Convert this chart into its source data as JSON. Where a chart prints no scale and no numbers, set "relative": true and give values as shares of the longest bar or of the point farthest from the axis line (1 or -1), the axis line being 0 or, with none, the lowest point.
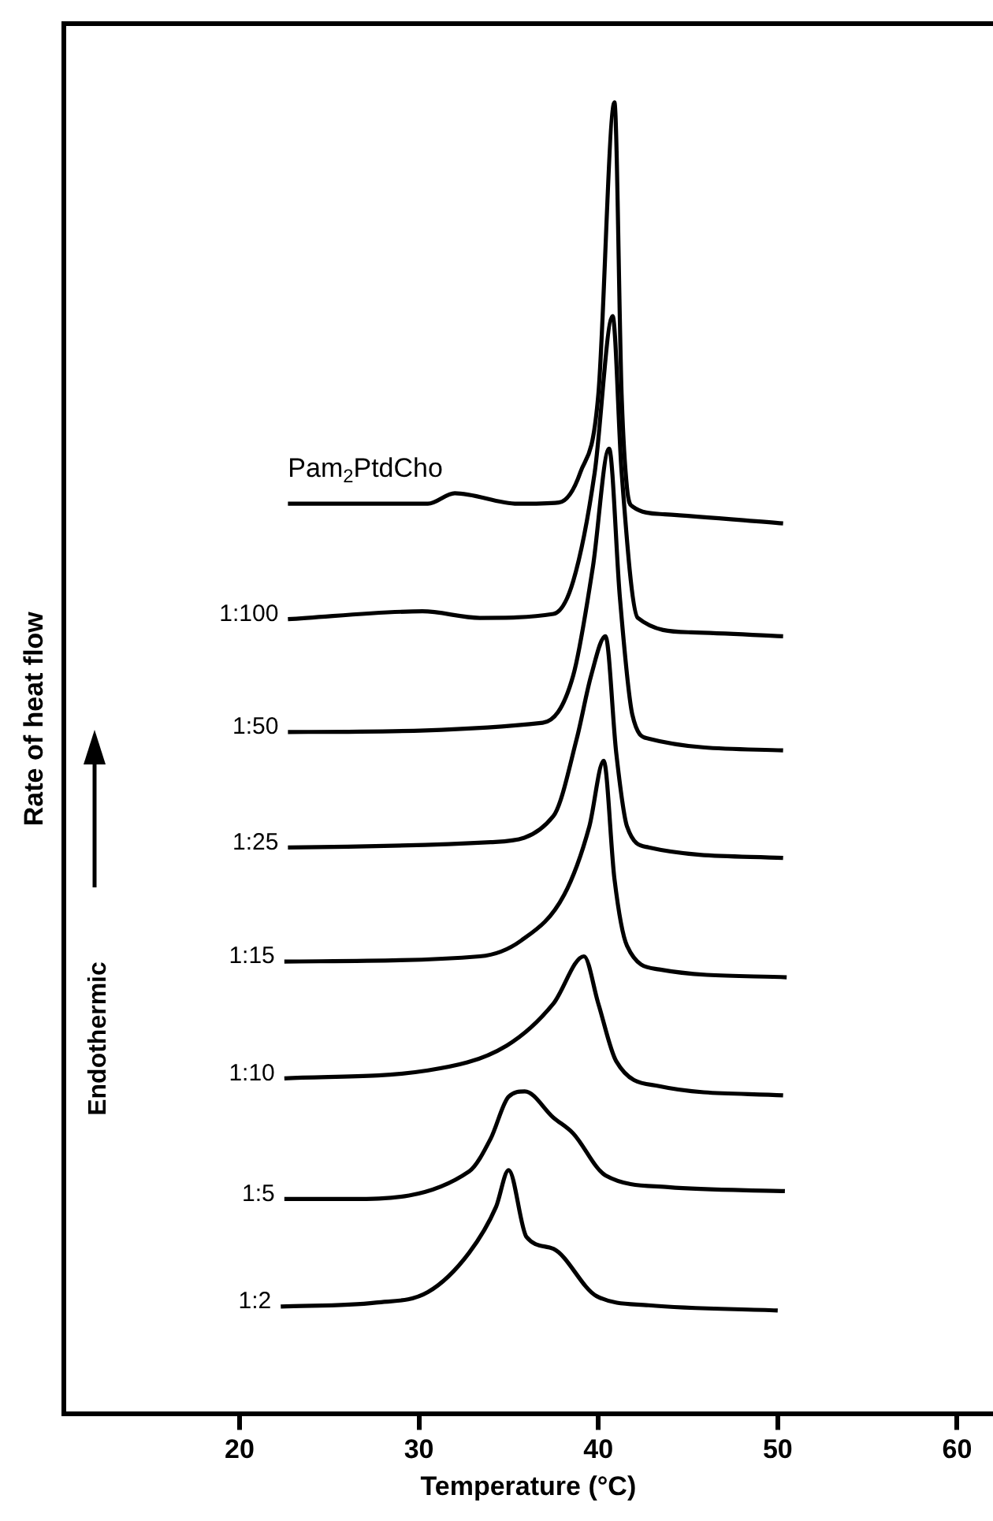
{
  "chart_data": {
    "type": "line",
    "relative": true,
    "xlabel": "Temperature (°C)",
    "ylabel": "Rate of heat flow",
    "annotations": [
      "Endothermic"
    ],
    "xlim": [
      10.2,
      62
    ],
    "xticks": [
      20,
      30,
      40,
      50,
      60
    ],
    "grid": false,
    "legend": false,
    "tick_labels": "x",
    "marker": "none",
    "line_style": "solid",
    "series": [
      {
        "name": "Pam$_{2}$PtdCho",
        "color": "#000000",
        "x": [
          22.7,
          30.5,
          32.0,
          35.5,
          37.8,
          39.0,
          40.0,
          40.9,
          41.3,
          41.6,
          41.9,
          43.7,
          50.3
        ],
        "values": [
          0.694,
          0.694,
          0.702,
          0.694,
          0.695,
          0.718,
          0.777,
          1.0,
          0.777,
          0.706,
          0.692,
          0.686,
          0.679
        ]
      },
      {
        "name": "1:100",
        "color": "#000000",
        "x": [
          22.7,
          30.2,
          33.4,
          37.5,
          38.6,
          39.8,
          40.8,
          41.3,
          42.2,
          45.2,
          50.3
        ],
        "values": [
          0.606,
          0.612,
          0.607,
          0.61,
          0.635,
          0.718,
          0.837,
          0.718,
          0.607,
          0.596,
          0.593
        ]
      },
      {
        "name": "1:50",
        "color": "#000000",
        "x": [
          22.7,
          36.9,
          38.6,
          39.7,
          40.6,
          41.2,
          41.9,
          42.8,
          50.3
        ],
        "values": [
          0.52,
          0.527,
          0.563,
          0.646,
          0.736,
          0.623,
          0.533,
          0.515,
          0.506
        ]
      },
      {
        "name": "1:25",
        "color": "#000000",
        "x": [
          22.7,
          34.0,
          37.5,
          38.8,
          39.6,
          40.4,
          41.0,
          41.6,
          42.8,
          50.3
        ],
        "values": [
          0.432,
          0.436,
          0.456,
          0.515,
          0.563,
          0.593,
          0.504,
          0.448,
          0.432,
          0.424
        ]
      },
      {
        "name": "1:15",
        "color": "#000000",
        "x": [
          22.5,
          33.4,
          35.7,
          38.1,
          39.5,
          40.3,
          40.9,
          41.6,
          43.4,
          50.5
        ],
        "values": [
          0.345,
          0.349,
          0.361,
          0.396,
          0.448,
          0.498,
          0.408,
          0.357,
          0.339,
          0.333
        ]
      },
      {
        "name": "1:10",
        "color": "#000000",
        "x": [
          22.5,
          30.5,
          34.9,
          37.5,
          39.2,
          40.0,
          41.0,
          43.4,
          50.3
        ],
        "values": [
          0.256,
          0.262,
          0.281,
          0.313,
          0.349,
          0.313,
          0.269,
          0.25,
          0.243
        ]
      },
      {
        "name": "1:5",
        "color": "#000000",
        "x": [
          22.5,
          26.1,
          32.8,
          34.0,
          35.0,
          35.9,
          37.5,
          38.6,
          40.4,
          43.9,
          50.4
        ],
        "values": [
          0.164,
          0.164,
          0.185,
          0.21,
          0.242,
          0.246,
          0.226,
          0.214,
          0.182,
          0.173,
          0.17
        ]
      },
      {
        "name": "1:2",
        "color": "#000000",
        "x": [
          22.3,
          27.6,
          30.5,
          32.8,
          34.3,
          35.0,
          36.0,
          37.5,
          39.9,
          42.8,
          50.0
        ],
        "values": [
          0.082,
          0.085,
          0.093,
          0.123,
          0.158,
          0.186,
          0.135,
          0.126,
          0.09,
          0.083,
          0.079
        ]
      }
    ]
  }
}
